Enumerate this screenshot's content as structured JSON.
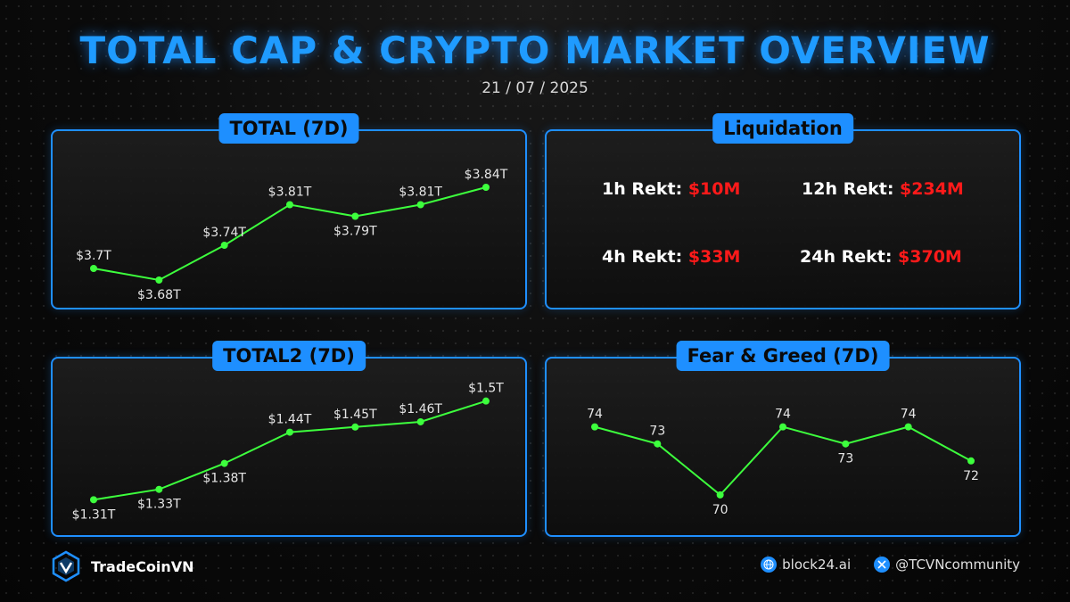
{
  "header": {
    "title": "TOTAL CAP & CRYPTO MARKET OVERVIEW",
    "date": "21 / 07 / 2025"
  },
  "colors": {
    "accent": "#1e8fff",
    "line": "#3dff3d",
    "loss": "#ff1a1a"
  },
  "chart_data": [
    {
      "type": "line",
      "title": "TOTAL (7D)",
      "values": [
        3.7,
        3.68,
        3.74,
        3.81,
        3.79,
        3.81,
        3.84
      ],
      "labels": [
        "$3.7T",
        "$3.68T",
        "$3.74T",
        "$3.81T",
        "$3.79T",
        "$3.81T",
        "$3.84T"
      ],
      "ylim": [
        3.66,
        3.86
      ],
      "grid": false
    },
    {
      "type": "line",
      "title": "TOTAL2 (7D)",
      "values": [
        1.31,
        1.33,
        1.38,
        1.44,
        1.45,
        1.46,
        1.5
      ],
      "labels": [
        "$1.31T",
        "$1.33T",
        "$1.38T",
        "$1.44T",
        "$1.45T",
        "$1.46T",
        "$1.5T"
      ],
      "ylim": [
        1.29,
        1.52
      ],
      "grid": false
    },
    {
      "type": "line",
      "title": "Fear & Greed (7D)",
      "values": [
        74,
        73,
        70,
        74,
        73,
        74,
        72
      ],
      "labels": [
        "74",
        "73",
        "70",
        "74",
        "73",
        "74",
        "72"
      ],
      "ylim": [
        69,
        75.5
      ],
      "grid": false
    }
  ],
  "liquidation": {
    "title": "Liquidation",
    "items": [
      {
        "label": "1h Rekt:",
        "value": "$10M"
      },
      {
        "label": "12h Rekt:",
        "value": "$234M"
      },
      {
        "label": "4h Rekt:",
        "value": "$33M"
      },
      {
        "label": "24h Rekt:",
        "value": "$370M"
      }
    ]
  },
  "footer": {
    "brand": "TradeCoinVN",
    "links": [
      {
        "icon": "globe-icon",
        "text": "block24.ai"
      },
      {
        "icon": "x-logo-icon",
        "text": "@TCVNcommunity"
      }
    ]
  }
}
